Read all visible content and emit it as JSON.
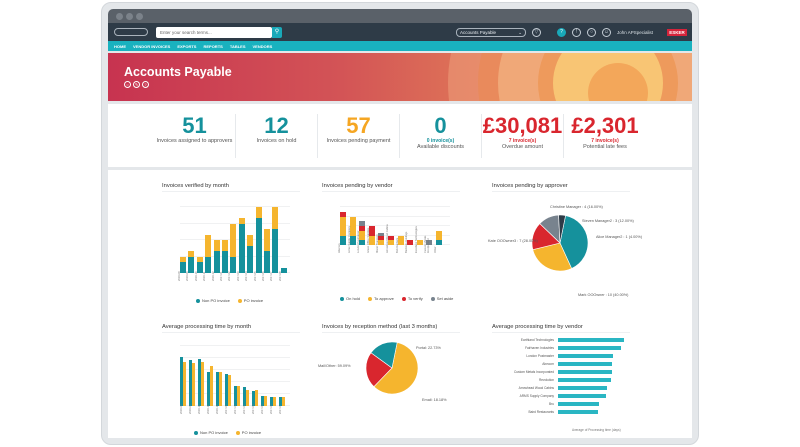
{
  "app": {
    "search_placeholder": "Enter your search terms...",
    "profile_select": "Accounts Payable",
    "user_name": "John APSpecialist",
    "brand": "ESKER"
  },
  "nav": [
    "HOME",
    "VENDOR INVOICES",
    "EXPORTS",
    "REPORTS",
    "TABLES",
    "VENDORS"
  ],
  "banner": {
    "title": "Accounts Payable"
  },
  "colors": {
    "teal": "#15919c",
    "orange": "#f5b52e",
    "red": "#d9262e",
    "grey": "#78838e",
    "accent": "#19b2bf"
  },
  "kpis": [
    {
      "value": "51",
      "label": "Invoices assigned to approvers",
      "color": "#15919c"
    },
    {
      "value": "12",
      "label": "Invoices on hold",
      "color": "#15919c"
    },
    {
      "value": "57",
      "label": "Invoices pending payment",
      "color": "#f5a623"
    },
    {
      "value": "0",
      "sub": "0 invoice(s)",
      "label": "Available discounts",
      "color": "#15919c"
    },
    {
      "value": "£30,081",
      "sub": "7 invoice(s)",
      "label": "Overdue amount",
      "color": "#d9262e"
    },
    {
      "value": "£2,301",
      "sub": "7 invoice(s)",
      "label": "Potential late fees",
      "color": "#d9262e"
    }
  ],
  "chart_data": [
    {
      "type": "bar",
      "stacked": true,
      "title": "Invoices verified by month",
      "xlabel": "Verification date",
      "ylabel": "Number of invoices",
      "ylim": [
        0,
        12
      ],
      "categories": [
        "2016-08",
        "2016-09",
        "2016-10",
        "2016-11",
        "2016-12",
        "2017-01",
        "2017-02",
        "2017-03",
        "2017-04",
        "2017-05",
        "2017-06",
        "2017-07",
        "2017-08"
      ],
      "series": [
        {
          "name": "Non PO invoice",
          "values": [
            2,
            3,
            2,
            3,
            4,
            4,
            3,
            9,
            5,
            10,
            4,
            8,
            1
          ]
        },
        {
          "name": "PO invoice",
          "values": [
            1,
            1,
            1,
            4,
            2,
            2,
            6,
            1,
            2,
            2,
            4,
            4,
            0
          ]
        }
      ]
    },
    {
      "type": "bar",
      "stacked": true,
      "title": "Invoices pending by vendor",
      "ylabel": "Number of invoices",
      "ylim": [
        0,
        8
      ],
      "categories": [
        "Abecom",
        "Acme Supply Company",
        "London Postmaster",
        "Green Office Supplies",
        "Mister Transport",
        "Arrowhead Wood Cabins",
        "Bob Dunbars",
        "Backlogs Holdings",
        "Excellenz Technologies",
        "Custom Metals Incorporated",
        "Other"
      ],
      "series": [
        {
          "name": "On hold",
          "values": [
            2,
            2,
            1,
            0,
            0,
            0,
            0,
            0,
            0,
            0,
            1
          ]
        },
        {
          "name": "To approve",
          "values": [
            4,
            4,
            2,
            2,
            1,
            1,
            2,
            0,
            1,
            0,
            2
          ]
        },
        {
          "name": "To verify",
          "values": [
            1,
            0,
            1,
            2,
            1,
            1,
            0,
            1,
            0,
            0,
            0
          ]
        },
        {
          "name": "Set aside",
          "values": [
            0,
            0,
            1,
            0,
            0.5,
            0,
            0,
            0,
            0,
            1,
            0
          ]
        }
      ]
    },
    {
      "type": "pie",
      "title": "Invoices pending by approver",
      "slices": [
        {
          "label": "Mark OOOwner : 10",
          "pct": "40.00%",
          "value": 10,
          "color": "#15919c"
        },
        {
          "label": "Kate OOOwner3 : 7",
          "pct": "28.00%",
          "value": 7,
          "color": "#f5b52e"
        },
        {
          "label": "Christine Manager : 4",
          "pct": "16.00%",
          "value": 4,
          "color": "#d9262e"
        },
        {
          "label": "Steven Manager2 : 3",
          "pct": "12.00%",
          "value": 3,
          "color": "#78838e"
        },
        {
          "label": "Alice Manager2 : 1",
          "pct": "4.00%",
          "value": 1,
          "color": "#2e3b47"
        }
      ]
    },
    {
      "type": "bar",
      "title": "Average processing time by month",
      "xlabel": "Date of verification",
      "ylabel": "Average of Processing time (days)",
      "ylim": [
        0,
        11
      ],
      "categories": [
        "2016-08",
        "2016-09",
        "2016-10",
        "2016-11",
        "2016-12",
        "2017-01",
        "2017-02",
        "2017-03",
        "2017-04",
        "2017-05",
        "2017-06",
        "2017-07"
      ],
      "series": [
        {
          "name": "Non PO invoice",
          "values": [
            9,
            8.5,
            8.7,
            6.3,
            6.3,
            5.9,
            3.6,
            3.5,
            2.7,
            1.8,
            1.7,
            1.7
          ]
        },
        {
          "name": "PO invoice",
          "values": [
            8,
            7.9,
            8.1,
            7.4,
            6.3,
            5.6,
            3.6,
            3.0,
            2.9,
            1.8,
            1.7,
            1.7
          ]
        }
      ]
    },
    {
      "type": "pie",
      "title": "Invoices by reception method (last 3 months)",
      "slices": [
        {
          "label": "Mail/Other: 59.09%",
          "value": 59.09,
          "color": "#f5b52e"
        },
        {
          "label": "Portal: 22.73%",
          "value": 22.73,
          "color": "#d9262e"
        },
        {
          "label": "Email: 18.18%",
          "value": 18.18,
          "color": "#15919c"
        }
      ]
    },
    {
      "type": "bar",
      "orientation": "horizontal",
      "title": "Average processing time by vendor",
      "xlabel": "Average of Processing time (days)",
      "ylabel": "Vendor name",
      "xlim": [
        0,
        7
      ],
      "categories": [
        "Earthland Technologies",
        "Fairhaven Industries",
        "London Postmaster",
        "Abecom",
        "Custom Metals Incorporated",
        "Revolution",
        "Arrowhead Wood Cabins",
        "ARMS Supply Company",
        "Bru",
        "Baird Restaurants"
      ],
      "values": [
        6.2,
        5.9,
        5.1,
        5.0,
        5.0,
        4.9,
        4.6,
        4.5,
        3.8,
        3.7
      ]
    }
  ]
}
